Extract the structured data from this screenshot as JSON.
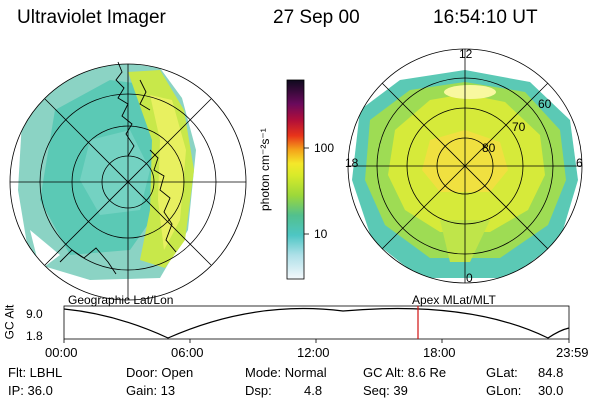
{
  "header": {
    "instrument": "Ultraviolet Imager",
    "date": "27 Sep 00",
    "time": "16:54:10 UT"
  },
  "colors": {
    "aurora_green": "#c8e84a",
    "aurora_teal": "#5bc9b5",
    "aurora_yellow": "#f0e040",
    "marker_red": "#d01010"
  },
  "colorbar": {
    "unit_label": "photon cm⁻²s⁻¹",
    "scale": "log",
    "ticks": [
      "100",
      "10"
    ]
  },
  "left_panel": {
    "label": "Geographic Lat/Lon"
  },
  "right_panel": {
    "label": "Apex MLat/MLT",
    "mlt_labels": {
      "top": "12",
      "left": "18",
      "right": "6",
      "bottom": "0"
    },
    "lat_labels": [
      "60",
      "70",
      "80"
    ]
  },
  "altitude_plot": {
    "ylabel": "GC Alt",
    "yticks": [
      "9.0",
      "1.8"
    ],
    "xticks": [
      "00:00",
      "06:00",
      "12:00",
      "18:00",
      "23:59"
    ],
    "current_marker": "16:54"
  },
  "status": {
    "row1": {
      "flt": "Flt: LBHL",
      "door": "Door: Open",
      "mode": "Mode: Normal",
      "gc_alt": "GC Alt: 8.6 Re",
      "glat_label": "GLat:",
      "glat_value": "84.8"
    },
    "row2": {
      "ip": "IP: 36.0",
      "gain": "Gain: 13",
      "dsp_label": "Dsp:",
      "dsp_value": "4.8",
      "seq": "Seq: 39",
      "glon_label": "GLon:",
      "glon_value": "30.0"
    }
  }
}
